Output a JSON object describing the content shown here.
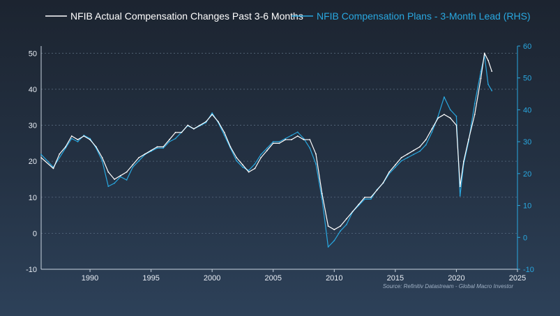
{
  "chart_data": {
    "type": "line",
    "title": "",
    "legend_position": "top",
    "grid": true,
    "source": "Source: Refinitiv Datastream - Global Macro Investor",
    "colors": {
      "series1": "#ffffff",
      "series2": "#29a8e0",
      "grid": "#6f8399",
      "axis": "#c9d4e0"
    },
    "x_axis": {
      "min": 1986,
      "max": 2025,
      "ticks": [
        "1990",
        "1995",
        "2000",
        "2005",
        "2010",
        "2015",
        "2020",
        "2025"
      ]
    },
    "y_left": {
      "min": -10,
      "max": 52,
      "ticks": [
        "-10",
        "0",
        "10",
        "20",
        "30",
        "40",
        "50"
      ]
    },
    "y_right": {
      "min": -10,
      "max": 60,
      "ticks": [
        "-10",
        "0",
        "10",
        "20",
        "30",
        "40",
        "50",
        "60"
      ]
    },
    "series": [
      {
        "name": "NFIB Actual Compensation Changes Past 3-6 Months",
        "axis": "left",
        "points": [
          [
            1986.0,
            21
          ],
          [
            1987.0,
            18
          ],
          [
            1987.5,
            22
          ],
          [
            1988.0,
            24
          ],
          [
            1988.5,
            27
          ],
          [
            1989.0,
            26
          ],
          [
            1989.5,
            27
          ],
          [
            1990.0,
            26
          ],
          [
            1990.5,
            24
          ],
          [
            1991.0,
            21
          ],
          [
            1991.5,
            17
          ],
          [
            1992.0,
            15
          ],
          [
            1992.5,
            16
          ],
          [
            1993.0,
            17
          ],
          [
            1993.5,
            19
          ],
          [
            1994.0,
            21
          ],
          [
            1994.5,
            22
          ],
          [
            1995.0,
            23
          ],
          [
            1995.5,
            24
          ],
          [
            1996.0,
            24
          ],
          [
            1996.5,
            26
          ],
          [
            1997.0,
            28
          ],
          [
            1997.5,
            28
          ],
          [
            1998.0,
            30
          ],
          [
            1998.5,
            29
          ],
          [
            1999.0,
            30
          ],
          [
            1999.5,
            31
          ],
          [
            2000.0,
            33
          ],
          [
            2000.5,
            31
          ],
          [
            2001.0,
            28
          ],
          [
            2001.5,
            24
          ],
          [
            2002.0,
            21
          ],
          [
            2002.5,
            19
          ],
          [
            2003.0,
            17
          ],
          [
            2003.5,
            18
          ],
          [
            2004.0,
            21
          ],
          [
            2004.5,
            23
          ],
          [
            2005.0,
            25
          ],
          [
            2005.5,
            25
          ],
          [
            2006.0,
            26
          ],
          [
            2006.5,
            26
          ],
          [
            2007.0,
            27
          ],
          [
            2007.5,
            26
          ],
          [
            2008.0,
            26
          ],
          [
            2008.5,
            22
          ],
          [
            2009.0,
            11
          ],
          [
            2009.5,
            2
          ],
          [
            2010.0,
            1
          ],
          [
            2010.5,
            2
          ],
          [
            2011.0,
            4
          ],
          [
            2011.5,
            6
          ],
          [
            2012.0,
            8
          ],
          [
            2012.5,
            10
          ],
          [
            2013.0,
            10
          ],
          [
            2013.5,
            12
          ],
          [
            2014.0,
            14
          ],
          [
            2014.5,
            17
          ],
          [
            2015.0,
            19
          ],
          [
            2015.5,
            21
          ],
          [
            2016.0,
            22
          ],
          [
            2016.5,
            23
          ],
          [
            2017.0,
            24
          ],
          [
            2017.5,
            26
          ],
          [
            2018.0,
            29
          ],
          [
            2018.5,
            32
          ],
          [
            2019.0,
            33
          ],
          [
            2019.5,
            32
          ],
          [
            2020.0,
            30
          ],
          [
            2020.3,
            13
          ],
          [
            2020.6,
            20
          ],
          [
            2021.0,
            26
          ],
          [
            2021.5,
            33
          ],
          [
            2022.0,
            43
          ],
          [
            2022.3,
            50
          ],
          [
            2022.6,
            48
          ],
          [
            2022.9,
            45
          ]
        ]
      },
      {
        "name": "NFIB Compensation Plans - 3-Month Lead (RHS)",
        "axis": "right",
        "points": [
          [
            1986.0,
            26
          ],
          [
            1987.0,
            22
          ],
          [
            1987.5,
            25
          ],
          [
            1988.0,
            28
          ],
          [
            1988.5,
            31
          ],
          [
            1989.0,
            30
          ],
          [
            1989.5,
            32
          ],
          [
            1990.0,
            31
          ],
          [
            1990.5,
            28
          ],
          [
            1991.0,
            24
          ],
          [
            1991.5,
            16
          ],
          [
            1992.0,
            17
          ],
          [
            1992.5,
            19
          ],
          [
            1993.0,
            18
          ],
          [
            1993.5,
            22
          ],
          [
            1994.0,
            24
          ],
          [
            1994.5,
            26
          ],
          [
            1995.0,
            27
          ],
          [
            1995.5,
            28
          ],
          [
            1996.0,
            28
          ],
          [
            1996.5,
            30
          ],
          [
            1997.0,
            31
          ],
          [
            1997.5,
            33
          ],
          [
            1998.0,
            35
          ],
          [
            1998.5,
            34
          ],
          [
            1999.0,
            35
          ],
          [
            1999.5,
            36
          ],
          [
            2000.0,
            39
          ],
          [
            2000.5,
            36
          ],
          [
            2001.0,
            32
          ],
          [
            2001.5,
            28
          ],
          [
            2002.0,
            24
          ],
          [
            2002.5,
            22
          ],
          [
            2003.0,
            21
          ],
          [
            2003.5,
            23
          ],
          [
            2004.0,
            26
          ],
          [
            2004.5,
            28
          ],
          [
            2005.0,
            30
          ],
          [
            2005.5,
            30
          ],
          [
            2006.0,
            31
          ],
          [
            2006.5,
            32
          ],
          [
            2007.0,
            33
          ],
          [
            2007.5,
            31
          ],
          [
            2008.0,
            28
          ],
          [
            2008.5,
            23
          ],
          [
            2009.0,
            12
          ],
          [
            2009.5,
            -3
          ],
          [
            2010.0,
            -1
          ],
          [
            2010.5,
            2
          ],
          [
            2011.0,
            4
          ],
          [
            2011.5,
            8
          ],
          [
            2012.0,
            10
          ],
          [
            2012.5,
            12
          ],
          [
            2013.0,
            12
          ],
          [
            2013.5,
            15
          ],
          [
            2014.0,
            17
          ],
          [
            2014.5,
            20
          ],
          [
            2015.0,
            22
          ],
          [
            2015.5,
            24
          ],
          [
            2016.0,
            25
          ],
          [
            2016.5,
            26
          ],
          [
            2017.0,
            27
          ],
          [
            2017.5,
            29
          ],
          [
            2018.0,
            33
          ],
          [
            2018.5,
            38
          ],
          [
            2019.0,
            44
          ],
          [
            2019.5,
            40
          ],
          [
            2020.0,
            38
          ],
          [
            2020.3,
            13
          ],
          [
            2020.6,
            23
          ],
          [
            2021.0,
            30
          ],
          [
            2021.5,
            42
          ],
          [
            2022.0,
            52
          ],
          [
            2022.3,
            57
          ],
          [
            2022.6,
            48
          ],
          [
            2022.9,
            46
          ]
        ]
      }
    ]
  }
}
